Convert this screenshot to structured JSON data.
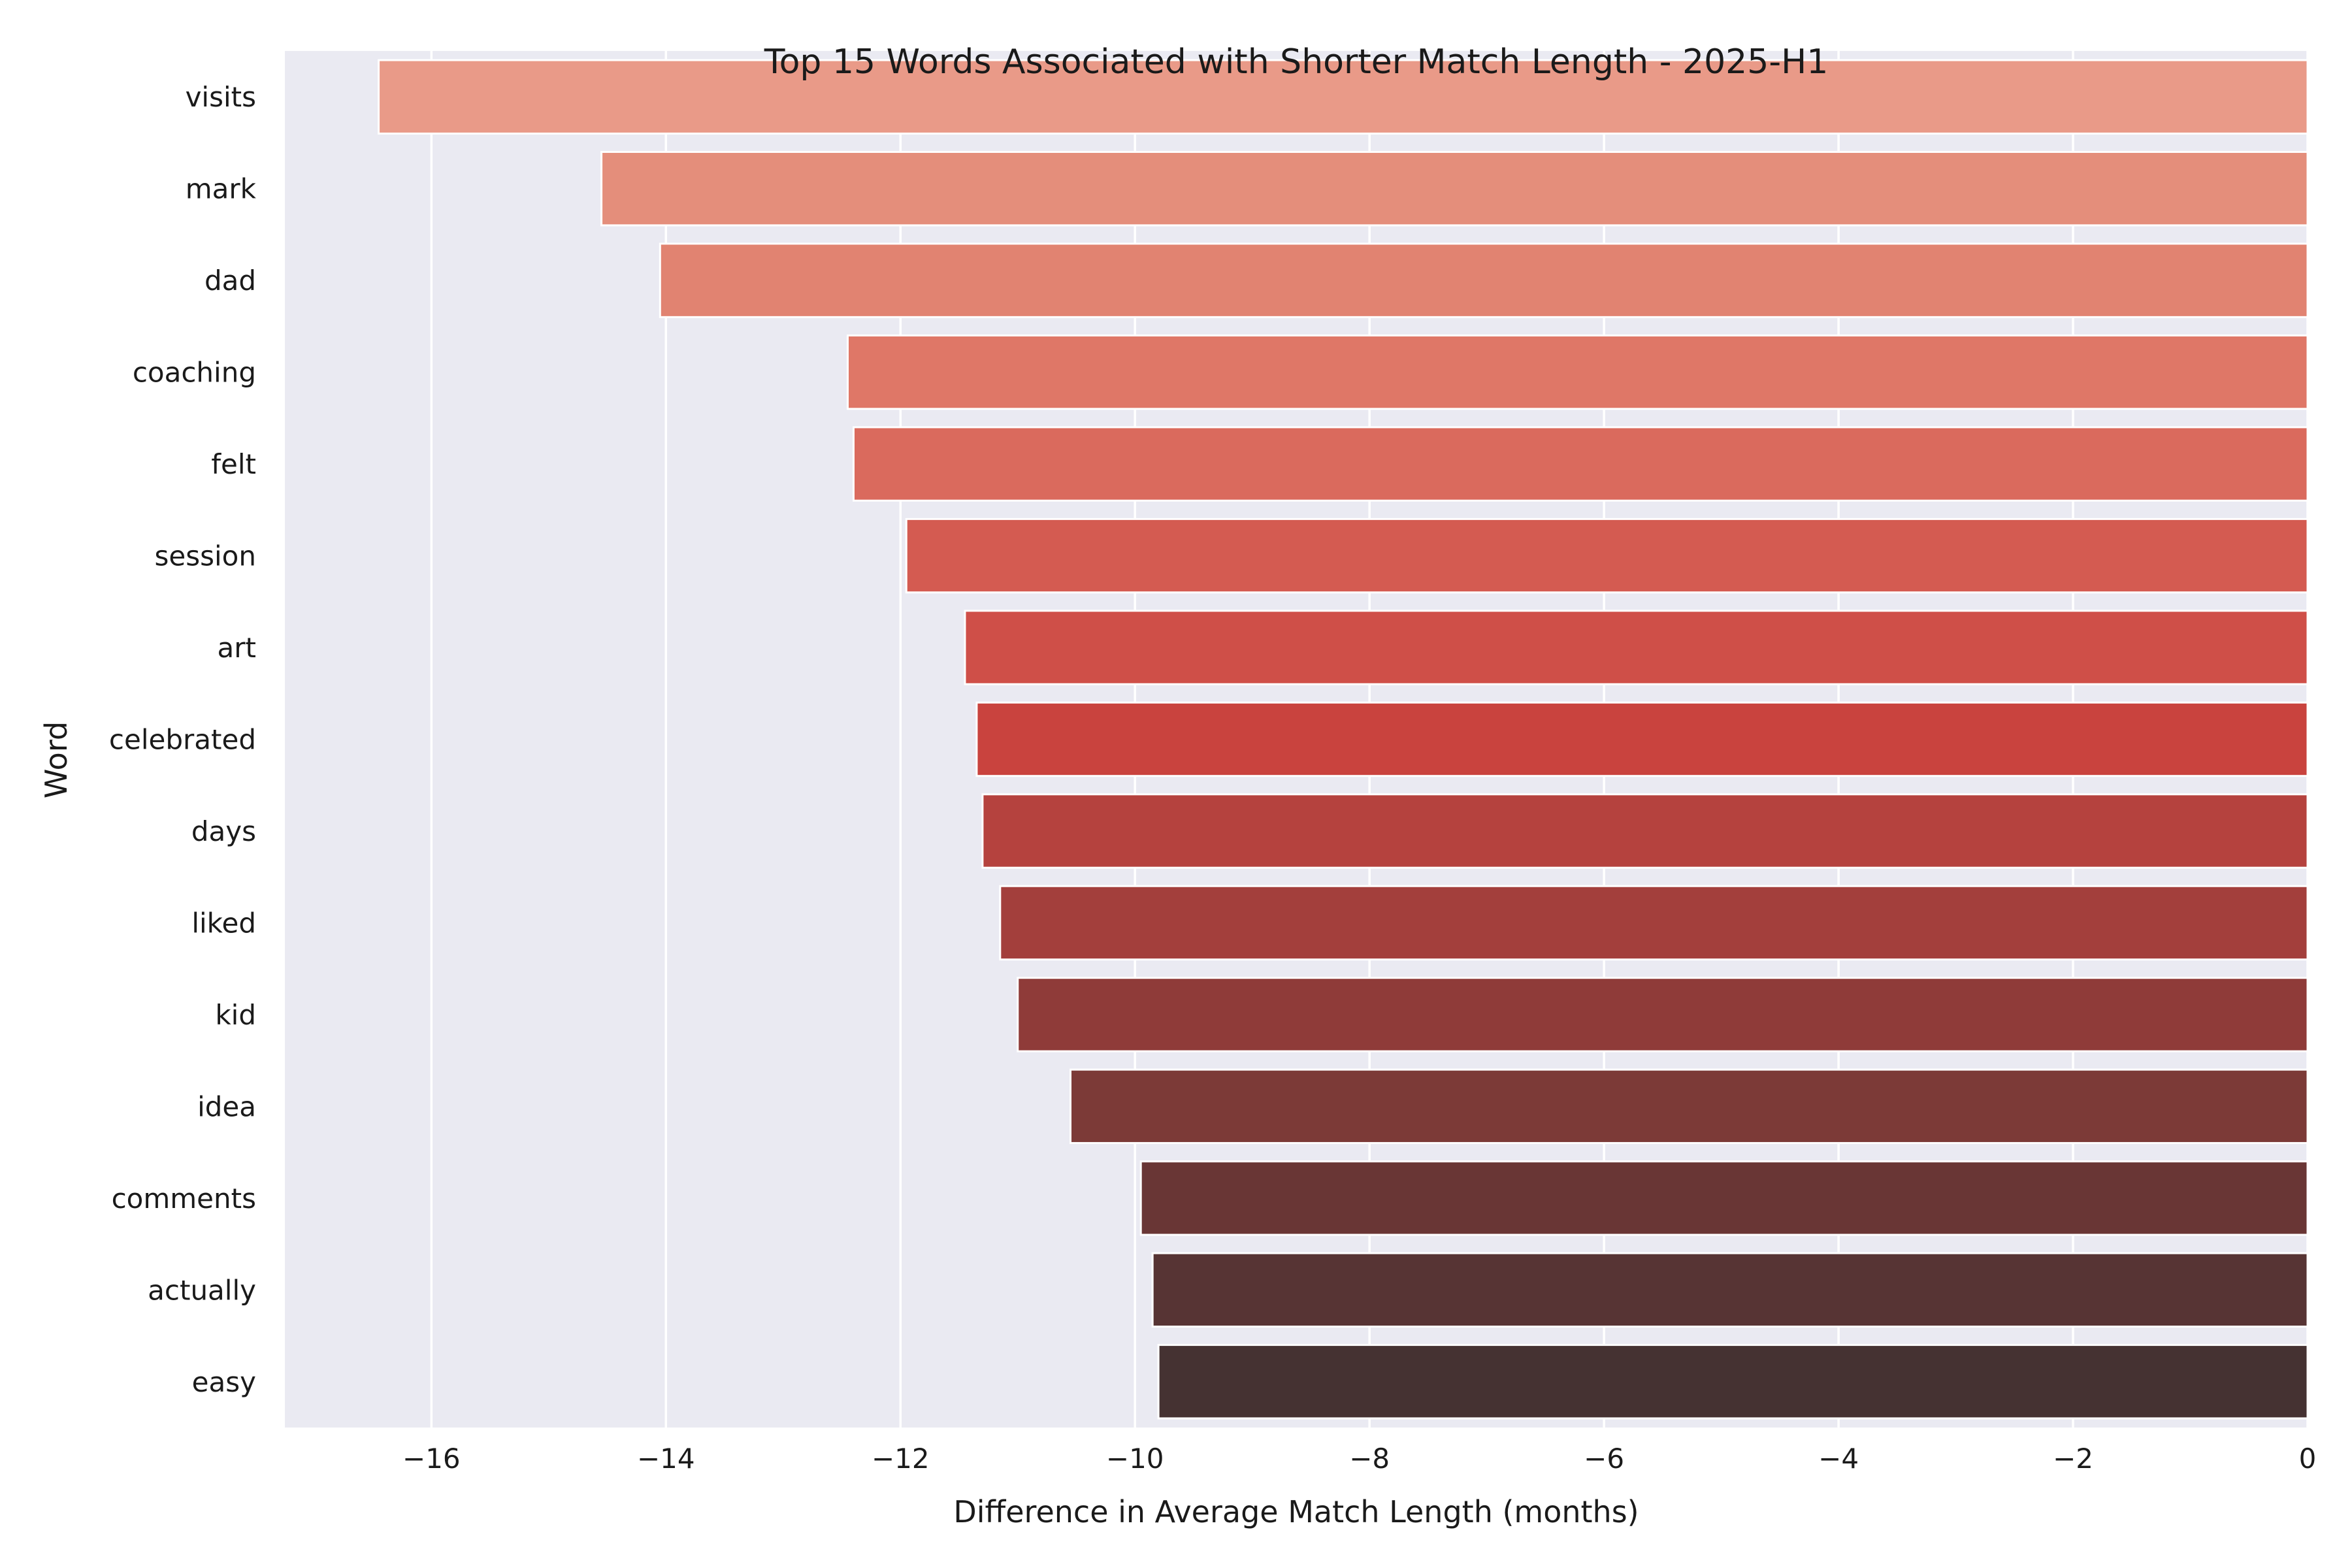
{
  "chart_data": {
    "type": "bar",
    "orientation": "horizontal",
    "title": "Top 15 Words Associated with Shorter Match Length - 2025-H1",
    "xlabel": "Difference in Average Match Length (months)",
    "ylabel": "Word",
    "xlim": [
      -17.25,
      0
    ],
    "xticks": [
      -16,
      -14,
      -12,
      -10,
      -8,
      -6,
      -4,
      -2,
      0
    ],
    "xtick_labels": [
      "−16",
      "−14",
      "−12",
      "−10",
      "−8",
      "−6",
      "−4",
      "−2",
      "0"
    ],
    "grid": true,
    "background": "#eaeaf2",
    "categories": [
      "visits",
      "mark",
      "dad",
      "coaching",
      "felt",
      "session",
      "art",
      "celebrated",
      "days",
      "liked",
      "kid",
      "idea",
      "comments",
      "actually",
      "easy"
    ],
    "values": [
      -16.45,
      -14.55,
      -14.05,
      -12.45,
      -12.4,
      -11.95,
      -11.45,
      -11.35,
      -11.3,
      -11.15,
      -11.0,
      -10.55,
      -9.95,
      -9.85,
      -9.8
    ],
    "colors": [
      "#e99a88",
      "#e48e7b",
      "#e18371",
      "#df7767",
      "#da6a5d",
      "#d45b51",
      "#cf4f48",
      "#c9433e",
      "#b5423e",
      "#a33f3c",
      "#8f3b39",
      "#7c3a37",
      "#693635",
      "#573434",
      "#453232"
    ]
  }
}
